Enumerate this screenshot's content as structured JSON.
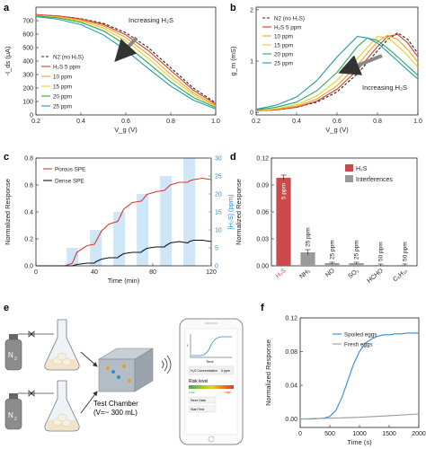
{
  "figure": {
    "panel_labels": [
      "a",
      "b",
      "c",
      "d",
      "e",
      "f"
    ]
  },
  "chart_data": [
    {
      "panel": "a",
      "type": "line",
      "xlabel": "V_g (V)",
      "ylabel": "-I_ds (μA)",
      "xlim": [
        0.2,
        1.0
      ],
      "ylim": [
        0,
        800
      ],
      "xticks": [
        0.2,
        0.4,
        0.6,
        0.8,
        1.0
      ],
      "yticks": [
        0,
        100,
        200,
        300,
        400,
        500,
        600,
        700
      ],
      "annotation": "Increasing H₂S",
      "legend_position": "center-left",
      "series": [
        {
          "name": "N2 (no H₂S)",
          "color": "#222222",
          "dash": true,
          "x": [
            0.2,
            0.3,
            0.4,
            0.5,
            0.6,
            0.7,
            0.8,
            0.9,
            1.0
          ],
          "y": [
            745,
            735,
            715,
            680,
            610,
            500,
            350,
            200,
            90
          ]
        },
        {
          "name": "H₂S 5 ppm",
          "color": "#d43c2c",
          "x": [
            0.2,
            0.3,
            0.4,
            0.5,
            0.6,
            0.7,
            0.8,
            0.9,
            1.0
          ],
          "y": [
            745,
            735,
            712,
            672,
            595,
            478,
            330,
            185,
            80
          ]
        },
        {
          "name": "10 ppm",
          "color": "#f0a030",
          "x": [
            0.2,
            0.3,
            0.4,
            0.5,
            0.6,
            0.7,
            0.8,
            0.9,
            1.0
          ],
          "y": [
            740,
            730,
            705,
            660,
            575,
            450,
            300,
            165,
            70
          ]
        },
        {
          "name": "15 ppm",
          "color": "#e8d020",
          "x": [
            0.2,
            0.3,
            0.4,
            0.5,
            0.6,
            0.7,
            0.8,
            0.9,
            1.0
          ],
          "y": [
            738,
            725,
            698,
            645,
            550,
            420,
            275,
            150,
            62
          ]
        },
        {
          "name": "20 ppm",
          "color": "#2fa65a",
          "x": [
            0.2,
            0.3,
            0.4,
            0.5,
            0.6,
            0.7,
            0.8,
            0.9,
            1.0
          ],
          "y": [
            735,
            720,
            688,
            625,
            520,
            385,
            245,
            130,
            55
          ]
        },
        {
          "name": "25 ppm",
          "color": "#1f9bb0",
          "x": [
            0.2,
            0.3,
            0.4,
            0.5,
            0.6,
            0.7,
            0.8,
            0.9,
            1.0
          ],
          "y": [
            730,
            710,
            670,
            595,
            480,
            345,
            215,
            110,
            45
          ]
        }
      ]
    },
    {
      "panel": "b",
      "type": "line",
      "xlabel": "V_g (V)",
      "ylabel": "g_m (mS)",
      "xlim": [
        0.2,
        1.0
      ],
      "ylim": [
        -0.05,
        2.05
      ],
      "xticks": [
        0.2,
        0.4,
        0.6,
        0.8,
        1.0
      ],
      "yticks": [
        0.0,
        1.0,
        2.0
      ],
      "annotation": "Increasing H₂S",
      "legend_position": "top-left",
      "series": [
        {
          "name": "N2 (no H₂S)",
          "color": "#222222",
          "dash": true,
          "x": [
            0.2,
            0.3,
            0.4,
            0.5,
            0.6,
            0.7,
            0.8,
            0.85,
            0.9,
            0.95,
            1.0
          ],
          "y": [
            0.03,
            0.05,
            0.1,
            0.2,
            0.4,
            0.75,
            1.2,
            1.42,
            1.55,
            1.42,
            1.15
          ]
        },
        {
          "name": "H₂S 5 ppm",
          "color": "#d43c2c",
          "x": [
            0.2,
            0.3,
            0.4,
            0.5,
            0.6,
            0.7,
            0.8,
            0.85,
            0.9,
            0.95,
            1.0
          ],
          "y": [
            0.03,
            0.05,
            0.1,
            0.22,
            0.45,
            0.82,
            1.28,
            1.48,
            1.52,
            1.35,
            1.08
          ]
        },
        {
          "name": "10 ppm",
          "color": "#f0a030",
          "x": [
            0.2,
            0.3,
            0.4,
            0.5,
            0.6,
            0.7,
            0.8,
            0.85,
            0.9,
            0.95,
            1.0
          ],
          "y": [
            0.03,
            0.06,
            0.12,
            0.26,
            0.52,
            0.92,
            1.38,
            1.5,
            1.42,
            1.22,
            0.98
          ]
        },
        {
          "name": "15 ppm",
          "color": "#e8d020",
          "x": [
            0.2,
            0.3,
            0.4,
            0.5,
            0.6,
            0.7,
            0.8,
            0.85,
            0.9,
            0.95,
            1.0
          ],
          "y": [
            0.04,
            0.07,
            0.15,
            0.32,
            0.62,
            1.05,
            1.48,
            1.45,
            1.3,
            1.1,
            0.88
          ]
        },
        {
          "name": "20 ppm",
          "color": "#2fa65a",
          "x": [
            0.2,
            0.3,
            0.4,
            0.5,
            0.6,
            0.7,
            0.75,
            0.8,
            0.85,
            0.9,
            0.95,
            1.0
          ],
          "y": [
            0.05,
            0.1,
            0.2,
            0.42,
            0.78,
            1.28,
            1.45,
            1.4,
            1.25,
            1.08,
            0.9,
            0.72
          ]
        },
        {
          "name": "25 ppm",
          "color": "#1f9bb0",
          "x": [
            0.2,
            0.3,
            0.4,
            0.5,
            0.6,
            0.7,
            0.75,
            0.8,
            0.85,
            0.9,
            0.95,
            1.0
          ],
          "y": [
            0.06,
            0.14,
            0.3,
            0.62,
            1.08,
            1.48,
            1.45,
            1.35,
            1.18,
            1.0,
            0.82,
            0.65
          ]
        }
      ]
    },
    {
      "panel": "c",
      "type": "line",
      "xlabel": "Time (min)",
      "ylabel": "Normalized Response",
      "y2label": "[H₂S] (ppm)",
      "xlim": [
        0,
        120
      ],
      "ylim": [
        0,
        0.8
      ],
      "y2lim": [
        0,
        30
      ],
      "xticks": [
        0,
        40,
        80,
        120
      ],
      "yticks": [
        0.0,
        0.2,
        0.4,
        0.6,
        0.8
      ],
      "y2ticks": [
        0,
        5,
        10,
        15,
        20,
        25,
        30
      ],
      "legend_position": "top-left",
      "bars": {
        "name": "[H₂S]",
        "color": "#cfe6f7",
        "x": [
          25,
          41,
          57,
          73,
          89,
          105
        ],
        "values": [
          5,
          10,
          15,
          20,
          25,
          30
        ]
      },
      "series": [
        {
          "name": "Porous SPE",
          "color": "#d43c2c",
          "x": [
            0,
            20,
            25,
            28,
            35,
            40,
            41,
            45,
            50,
            56,
            57,
            60,
            66,
            72,
            73,
            76,
            82,
            88,
            89,
            92,
            98,
            104,
            105,
            108,
            114,
            120
          ],
          "y": [
            0,
            0,
            0.02,
            0.1,
            0.15,
            0.16,
            0.18,
            0.26,
            0.31,
            0.33,
            0.35,
            0.42,
            0.47,
            0.48,
            0.49,
            0.53,
            0.55,
            0.56,
            0.57,
            0.6,
            0.62,
            0.62,
            0.63,
            0.64,
            0.65,
            0.64
          ]
        },
        {
          "name": "Dense SPE",
          "color": "#111111",
          "x": [
            0,
            20,
            25,
            28,
            35,
            40,
            41,
            45,
            50,
            56,
            57,
            60,
            66,
            72,
            73,
            76,
            82,
            88,
            89,
            92,
            98,
            104,
            105,
            108,
            114,
            120
          ],
          "y": [
            0,
            0,
            0.0,
            0.01,
            0.02,
            0.02,
            0.03,
            0.05,
            0.06,
            0.06,
            0.07,
            0.09,
            0.1,
            0.1,
            0.11,
            0.13,
            0.14,
            0.14,
            0.15,
            0.17,
            0.18,
            0.17,
            0.18,
            0.19,
            0.19,
            0.18
          ]
        }
      ]
    },
    {
      "panel": "d",
      "type": "bar",
      "ylabel": "Normalized Response",
      "ylim": [
        0,
        0.12
      ],
      "yticks": [
        0.0,
        0.03,
        0.06,
        0.09,
        0.12
      ],
      "legend_position": "top-right",
      "legend": [
        {
          "name": "H₂S",
          "color": "#cc4a4a"
        },
        {
          "name": "Interferences",
          "color": "#9a9a9a"
        }
      ],
      "categories": [
        "H₂S",
        "NH₃",
        "NO",
        "SO₂",
        "HCHO",
        "C₆H₁₀"
      ],
      "values": [
        0.098,
        0.015,
        0.003,
        0.003,
        0.001,
        0.001
      ],
      "errors": [
        0.003,
        0.003,
        0.001,
        0.001,
        0.001,
        0.001
      ],
      "bar_labels": [
        "5 ppm",
        "25 ppm",
        "25 ppm",
        "25 ppm",
        "50 ppm",
        "50 ppm"
      ]
    },
    {
      "panel": "f",
      "type": "line",
      "xlabel": "Time (s)",
      "ylabel": "Normalized Response",
      "xlim": [
        0,
        2000
      ],
      "ylim": [
        -0.01,
        0.12
      ],
      "xticks": [
        0,
        500,
        1000,
        1500,
        2000
      ],
      "yticks": [
        0.0,
        0.04,
        0.08,
        0.12
      ],
      "legend_position": "top-right",
      "series": [
        {
          "name": "Spoiled eggs",
          "color": "#2a8fd0",
          "x": [
            0,
            200,
            400,
            500,
            600,
            700,
            800,
            900,
            1000,
            1100,
            1200,
            1300,
            1400,
            1500,
            1600,
            1700,
            1800,
            1900,
            2000
          ],
          "y": [
            0,
            0.0,
            0.001,
            0.003,
            0.01,
            0.025,
            0.045,
            0.065,
            0.08,
            0.09,
            0.095,
            0.098,
            0.1,
            0.1,
            0.101,
            0.101,
            0.102,
            0.102,
            0.102
          ]
        },
        {
          "name": "Fresh eggs",
          "color": "#9a9a9a",
          "x": [
            0,
            500,
            1000,
            1500,
            2000
          ],
          "y": [
            0,
            0.001,
            0.002,
            0.004,
            0.006
          ]
        }
      ]
    }
  ],
  "schematic": {
    "n2_label_1": "N",
    "n2_sub_1": "2",
    "n2_label_2": "N",
    "n2_sub_2": "2",
    "chamber_label": "Test Chamber",
    "chamber_volume": "(V=~ 300 mL)",
    "phone_xlabel": "Time",
    "phone_ylabel": "I",
    "phone_concentration": "H₂S Concentration",
    "phone_conc_value": "0  ppm",
    "phone_risk_level": "Risk level",
    "phone_low": "Low",
    "phone_high": "High",
    "phone_save": "Save Data",
    "phone_start": "Start Test"
  }
}
